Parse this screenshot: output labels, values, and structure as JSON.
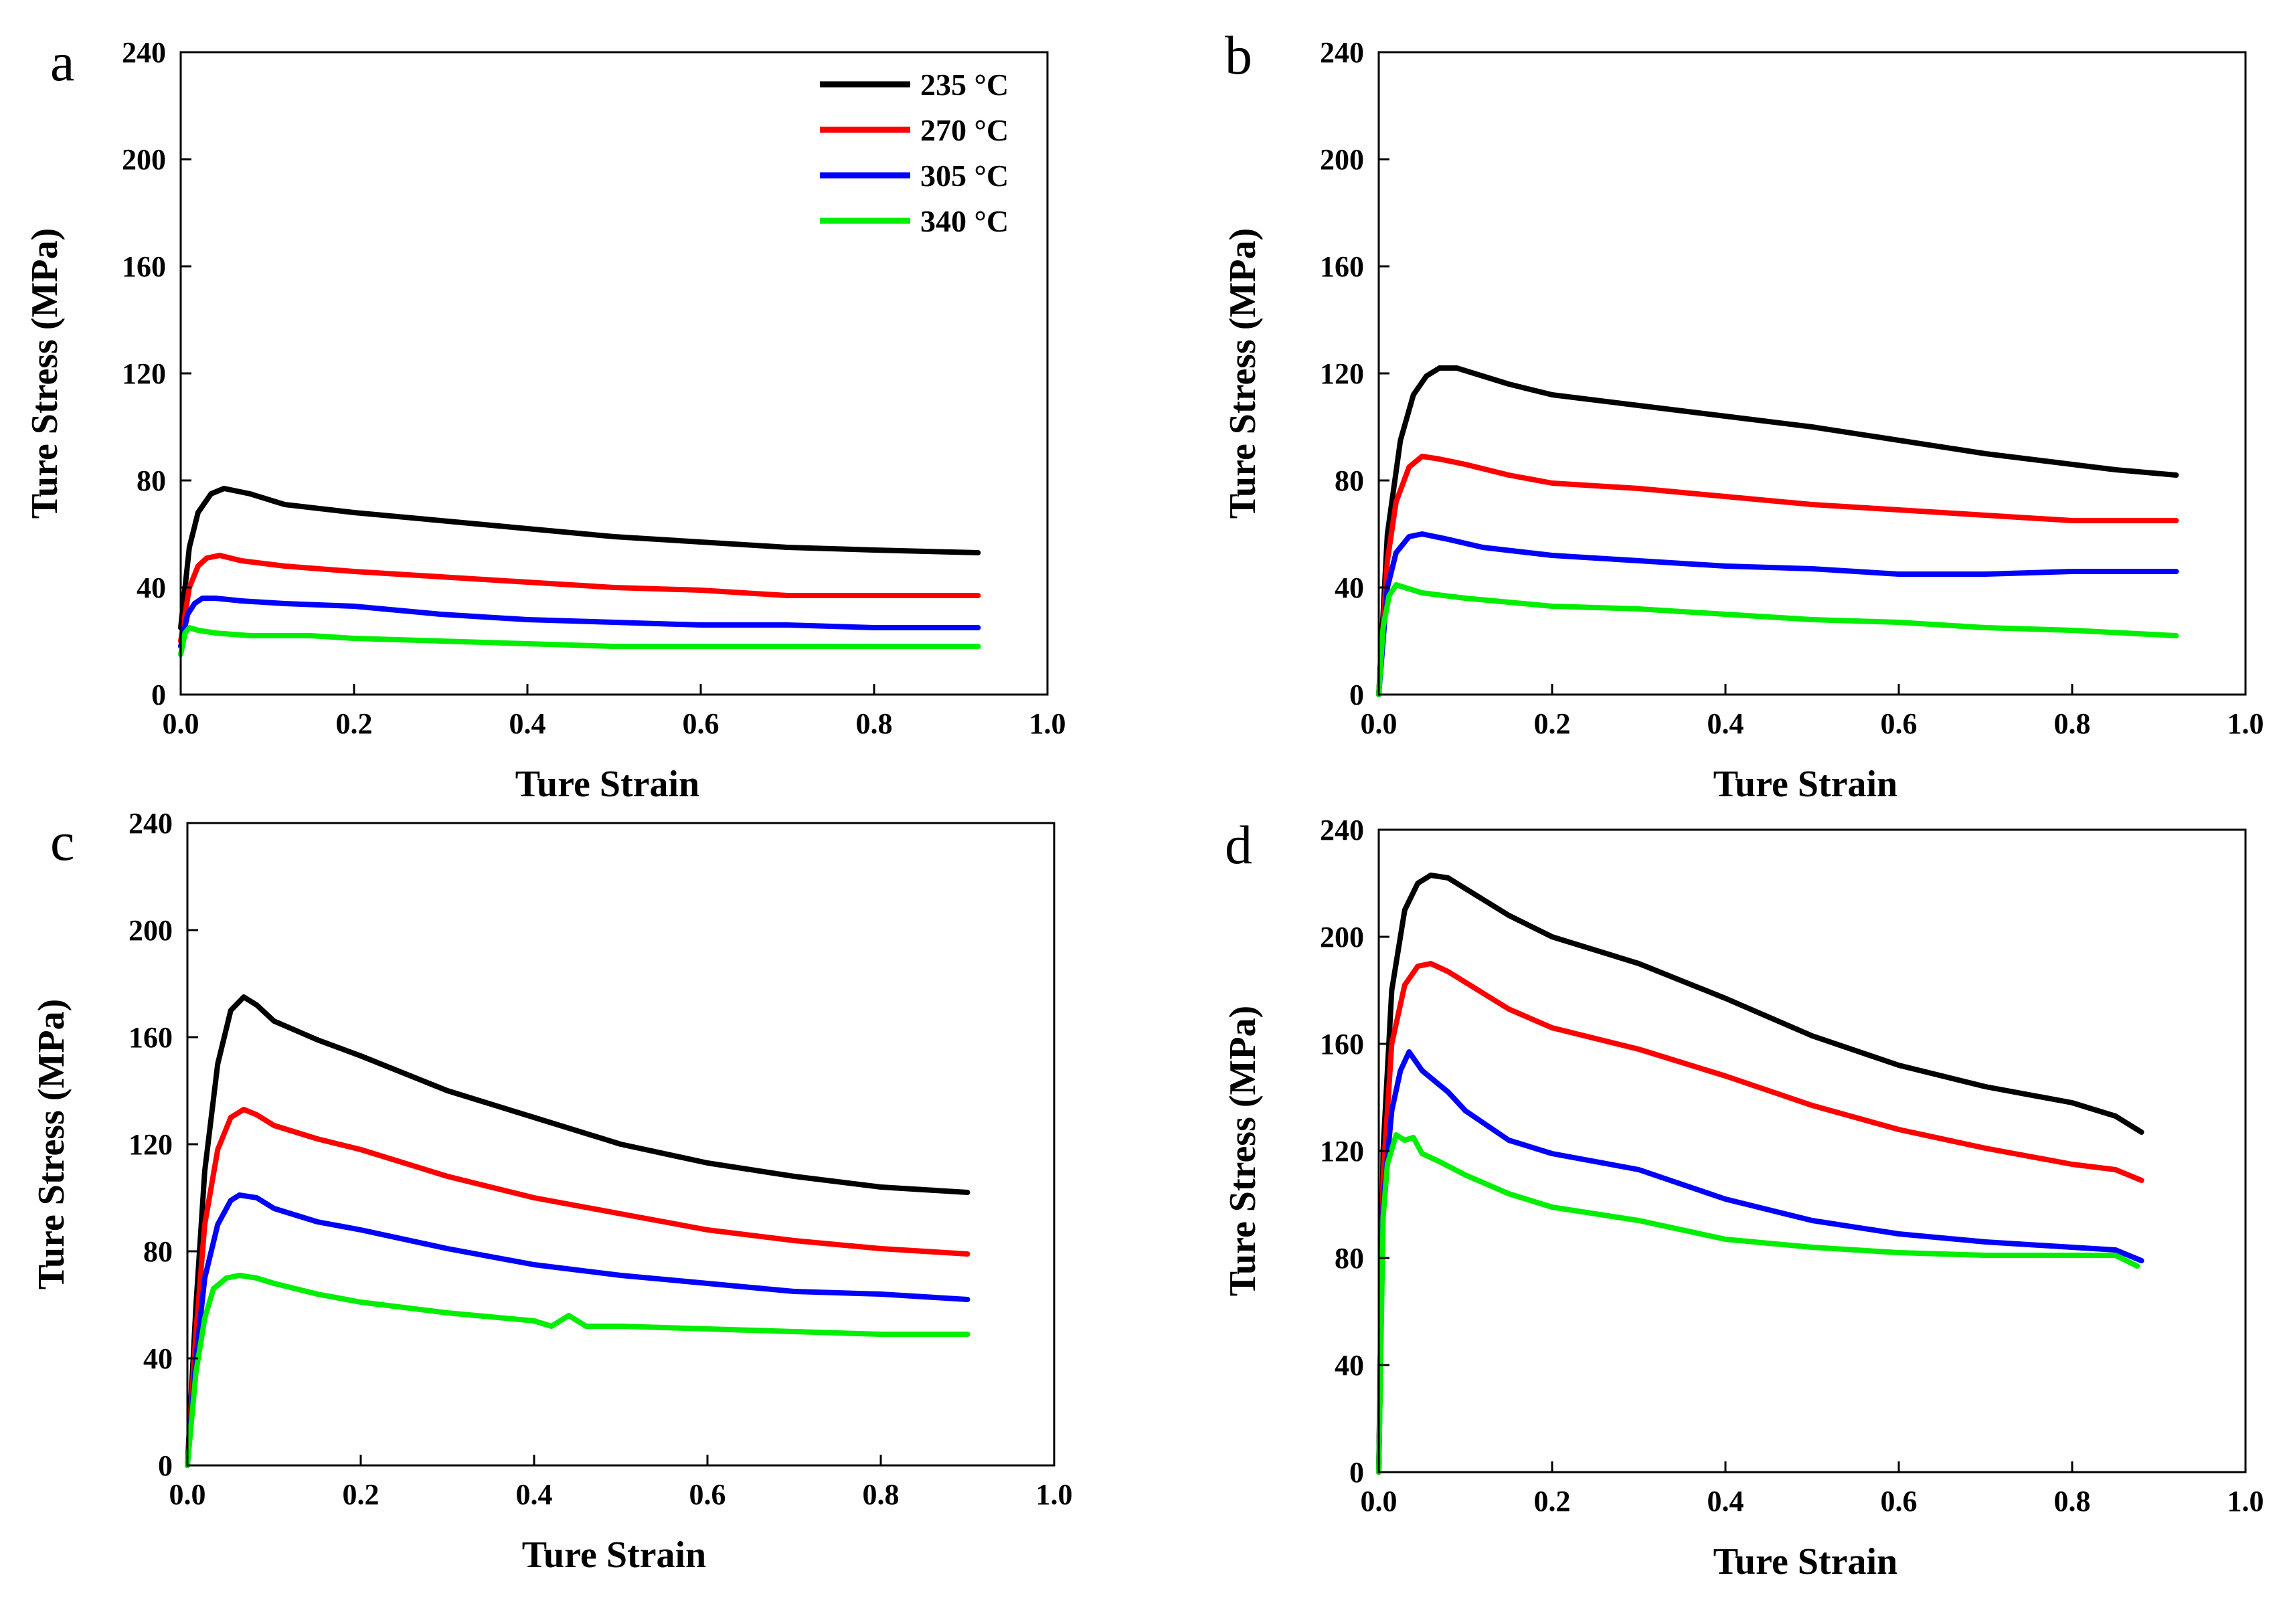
{
  "chart_data": [
    {
      "type": "line",
      "panel": "a",
      "xlabel": "Ture Strain",
      "ylabel": "Ture Stress (MPa)",
      "xlim": [
        0,
        1.0
      ],
      "ylim": [
        0,
        240
      ],
      "xticks": [
        "0.0",
        "0.2",
        "0.4",
        "0.6",
        "0.8",
        "1.0"
      ],
      "yticks": [
        "0",
        "40",
        "80",
        "120",
        "160",
        "200",
        "240"
      ],
      "legend": {
        "position": "top-right",
        "entries": [
          "235 °C",
          "270 °C",
          "305 °C",
          "340 °C"
        ]
      },
      "series": [
        {
          "name": "235 °C",
          "color": "#000000",
          "x": [
            0.0,
            0.01,
            0.02,
            0.035,
            0.05,
            0.08,
            0.12,
            0.2,
            0.3,
            0.4,
            0.5,
            0.6,
            0.7,
            0.8,
            0.92
          ],
          "y": [
            25,
            55,
            68,
            75,
            77,
            75,
            71,
            68,
            65,
            62,
            59,
            57,
            55,
            54,
            53
          ]
        },
        {
          "name": "270 °C",
          "color": "#ff0000",
          "x": [
            0.0,
            0.01,
            0.02,
            0.03,
            0.045,
            0.07,
            0.12,
            0.2,
            0.3,
            0.4,
            0.5,
            0.6,
            0.7,
            0.8,
            0.92
          ],
          "y": [
            20,
            40,
            48,
            51,
            52,
            50,
            48,
            46,
            44,
            42,
            40,
            39,
            37,
            37,
            37
          ]
        },
        {
          "name": "305 °C",
          "color": "#0000ff",
          "x": [
            0.0,
            0.008,
            0.016,
            0.025,
            0.04,
            0.07,
            0.12,
            0.2,
            0.3,
            0.4,
            0.5,
            0.6,
            0.7,
            0.8,
            0.92
          ],
          "y": [
            18,
            30,
            34,
            36,
            36,
            35,
            34,
            33,
            30,
            28,
            27,
            26,
            26,
            25,
            25
          ]
        },
        {
          "name": "340 °C",
          "color": "#00ee00",
          "x": [
            0.0,
            0.005,
            0.01,
            0.02,
            0.04,
            0.08,
            0.15,
            0.2,
            0.3,
            0.4,
            0.5,
            0.6,
            0.7,
            0.8,
            0.92
          ],
          "y": [
            15,
            23,
            25,
            24,
            23,
            22,
            22,
            21,
            20,
            19,
            18,
            18,
            18,
            18,
            18
          ]
        }
      ]
    },
    {
      "type": "line",
      "panel": "b",
      "xlabel": "Ture Strain",
      "ylabel": "Ture Stress (MPa)",
      "xlim": [
        0,
        1.0
      ],
      "ylim": [
        0,
        240
      ],
      "xticks": [
        "0.0",
        "0.2",
        "0.4",
        "0.6",
        "0.8",
        "1.0"
      ],
      "yticks": [
        "0",
        "40",
        "80",
        "120",
        "160",
        "200",
        "240"
      ],
      "series": [
        {
          "name": "235 °C",
          "color": "#000000",
          "x": [
            0.0,
            0.01,
            0.025,
            0.04,
            0.055,
            0.07,
            0.09,
            0.12,
            0.15,
            0.2,
            0.3,
            0.4,
            0.5,
            0.6,
            0.7,
            0.8,
            0.85,
            0.92
          ],
          "y": [
            0,
            60,
            95,
            112,
            119,
            122,
            122,
            119,
            116,
            112,
            108,
            104,
            100,
            95,
            90,
            86,
            84,
            82
          ]
        },
        {
          "name": "270 °C",
          "color": "#ff0000",
          "x": [
            0.0,
            0.01,
            0.02,
            0.035,
            0.05,
            0.07,
            0.1,
            0.15,
            0.2,
            0.3,
            0.4,
            0.5,
            0.6,
            0.7,
            0.8,
            0.92
          ],
          "y": [
            0,
            50,
            72,
            85,
            89,
            88,
            86,
            82,
            79,
            77,
            74,
            71,
            69,
            67,
            65,
            65
          ]
        },
        {
          "name": "305 °C",
          "color": "#0000ff",
          "x": [
            0.0,
            0.01,
            0.02,
            0.035,
            0.05,
            0.08,
            0.12,
            0.2,
            0.3,
            0.4,
            0.5,
            0.6,
            0.7,
            0.8,
            0.92
          ],
          "y": [
            0,
            40,
            53,
            59,
            60,
            58,
            55,
            52,
            50,
            48,
            47,
            45,
            45,
            46,
            46
          ]
        },
        {
          "name": "340 °C",
          "color": "#00ee00",
          "x": [
            0.0,
            0.005,
            0.012,
            0.02,
            0.03,
            0.05,
            0.1,
            0.2,
            0.3,
            0.4,
            0.5,
            0.6,
            0.7,
            0.8,
            0.92
          ],
          "y": [
            0,
            25,
            37,
            41,
            40,
            38,
            36,
            33,
            32,
            30,
            28,
            27,
            25,
            24,
            22
          ]
        }
      ]
    },
    {
      "type": "line",
      "panel": "c",
      "xlabel": "Ture Strain",
      "ylabel": "Ture Stress (MPa)",
      "xlim": [
        0,
        1.0
      ],
      "ylim": [
        0,
        240
      ],
      "xticks": [
        "0.0",
        "0.2",
        "0.4",
        "0.6",
        "0.8",
        "1.0"
      ],
      "yticks": [
        "0",
        "40",
        "80",
        "120",
        "160",
        "200",
        "240"
      ],
      "series": [
        {
          "name": "235 °C",
          "color": "#000000",
          "x": [
            0.0,
            0.01,
            0.02,
            0.035,
            0.05,
            0.065,
            0.08,
            0.1,
            0.15,
            0.2,
            0.3,
            0.4,
            0.5,
            0.6,
            0.7,
            0.8,
            0.9
          ],
          "y": [
            0,
            60,
            110,
            150,
            170,
            175,
            172,
            166,
            159,
            153,
            140,
            130,
            120,
            113,
            108,
            104,
            102
          ]
        },
        {
          "name": "270 °C",
          "color": "#ff0000",
          "x": [
            0.0,
            0.01,
            0.02,
            0.035,
            0.05,
            0.065,
            0.08,
            0.1,
            0.15,
            0.2,
            0.3,
            0.4,
            0.5,
            0.6,
            0.7,
            0.8,
            0.9
          ],
          "y": [
            0,
            50,
            90,
            118,
            130,
            133,
            131,
            127,
            122,
            118,
            108,
            100,
            94,
            88,
            84,
            81,
            79
          ]
        },
        {
          "name": "305 °C",
          "color": "#0000ff",
          "x": [
            0.0,
            0.01,
            0.02,
            0.035,
            0.05,
            0.06,
            0.08,
            0.1,
            0.15,
            0.2,
            0.3,
            0.4,
            0.5,
            0.6,
            0.7,
            0.8,
            0.9
          ],
          "y": [
            0,
            40,
            70,
            90,
            99,
            101,
            100,
            96,
            91,
            88,
            81,
            75,
            71,
            68,
            65,
            64,
            62
          ]
        },
        {
          "name": "340 °C",
          "color": "#00ee00",
          "x": [
            0.0,
            0.01,
            0.02,
            0.03,
            0.045,
            0.06,
            0.08,
            0.1,
            0.15,
            0.2,
            0.3,
            0.4,
            0.42,
            0.44,
            0.46,
            0.5,
            0.6,
            0.7,
            0.8,
            0.9
          ],
          "y": [
            0,
            35,
            55,
            66,
            70,
            71,
            70,
            68,
            64,
            61,
            57,
            54,
            52,
            56,
            52,
            52,
            51,
            50,
            49,
            49
          ]
        }
      ]
    },
    {
      "type": "line",
      "panel": "d",
      "xlabel": "Ture Strain",
      "ylabel": "Ture Stress (MPa)",
      "xlim": [
        0,
        1.0
      ],
      "ylim": [
        0,
        240
      ],
      "xticks": [
        "0.0",
        "0.2",
        "0.4",
        "0.6",
        "0.8",
        "1.0"
      ],
      "yticks": [
        "0",
        "40",
        "80",
        "120",
        "160",
        "200",
        "240"
      ],
      "series": [
        {
          "name": "235 °C",
          "color": "#000000",
          "x": [
            0.0,
            0.005,
            0.015,
            0.03,
            0.045,
            0.06,
            0.08,
            0.1,
            0.15,
            0.2,
            0.3,
            0.4,
            0.5,
            0.6,
            0.7,
            0.8,
            0.85,
            0.88
          ],
          "y": [
            0,
            120,
            180,
            210,
            220,
            223,
            222,
            218,
            208,
            200,
            190,
            177,
            163,
            152,
            144,
            138,
            133,
            127
          ]
        },
        {
          "name": "270 °C",
          "color": "#ff0000",
          "x": [
            0.0,
            0.005,
            0.015,
            0.03,
            0.045,
            0.06,
            0.08,
            0.1,
            0.15,
            0.2,
            0.3,
            0.4,
            0.5,
            0.6,
            0.7,
            0.8,
            0.85,
            0.88
          ],
          "y": [
            0,
            110,
            160,
            182,
            189,
            190,
            187,
            183,
            173,
            166,
            158,
            148,
            137,
            128,
            121,
            115,
            113,
            109
          ]
        },
        {
          "name": "305 °C",
          "color": "#0000ff",
          "x": [
            0.0,
            0.005,
            0.015,
            0.025,
            0.035,
            0.05,
            0.08,
            0.1,
            0.15,
            0.2,
            0.3,
            0.4,
            0.5,
            0.6,
            0.7,
            0.8,
            0.85,
            0.88
          ],
          "y": [
            0,
            100,
            135,
            150,
            157,
            150,
            142,
            135,
            124,
            119,
            113,
            102,
            94,
            89,
            86,
            84,
            83,
            79
          ]
        },
        {
          "name": "340 °C",
          "color": "#00ee00",
          "x": [
            0.0,
            0.005,
            0.01,
            0.02,
            0.03,
            0.04,
            0.05,
            0.07,
            0.1,
            0.15,
            0.2,
            0.3,
            0.4,
            0.5,
            0.6,
            0.7,
            0.8,
            0.85,
            0.875
          ],
          "y": [
            0,
            95,
            115,
            126,
            124,
            125,
            119,
            116,
            111,
            104,
            99,
            94,
            87,
            84,
            82,
            81,
            81,
            81,
            77
          ]
        }
      ]
    }
  ]
}
